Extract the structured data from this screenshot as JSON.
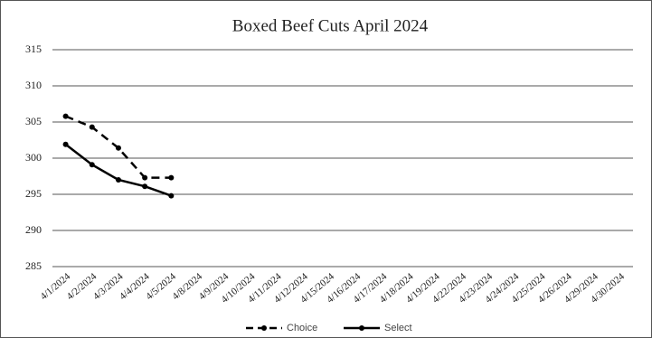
{
  "chart_data": {
    "type": "line",
    "title": "Boxed Beef Cuts April 2024",
    "categories": [
      "4/1/2024",
      "4/2/2024",
      "4/3/2024",
      "4/4/2024",
      "4/5/2024",
      "4/8/2024",
      "4/9/2024",
      "4/10/2024",
      "4/11/2024",
      "4/12/2024",
      "4/15/2024",
      "4/16/2024",
      "4/17/2024",
      "4/18/2024",
      "4/19/2024",
      "4/22/2024",
      "4/23/2024",
      "4/24/2024",
      "4/25/2024",
      "4/26/2024",
      "4/29/2024",
      "4/30/2024"
    ],
    "series": [
      {
        "name": "Choice",
        "color": "#000000",
        "dash": true,
        "values": [
          305.8,
          304.3,
          301.4,
          297.3,
          297.3,
          null,
          null,
          null,
          null,
          null,
          null,
          null,
          null,
          null,
          null,
          null,
          null,
          null,
          null,
          null,
          null,
          null
        ]
      },
      {
        "name": "Select",
        "color": "#000000",
        "dash": false,
        "values": [
          301.9,
          299.1,
          297.0,
          296.1,
          294.8,
          null,
          null,
          null,
          null,
          null,
          null,
          null,
          null,
          null,
          null,
          null,
          null,
          null,
          null,
          null,
          null,
          null
        ]
      }
    ],
    "ylim": [
      285,
      315
    ],
    "yticks": [
      285,
      290,
      295,
      300,
      305,
      310,
      315
    ],
    "grid": true,
    "legend": "bottom"
  }
}
